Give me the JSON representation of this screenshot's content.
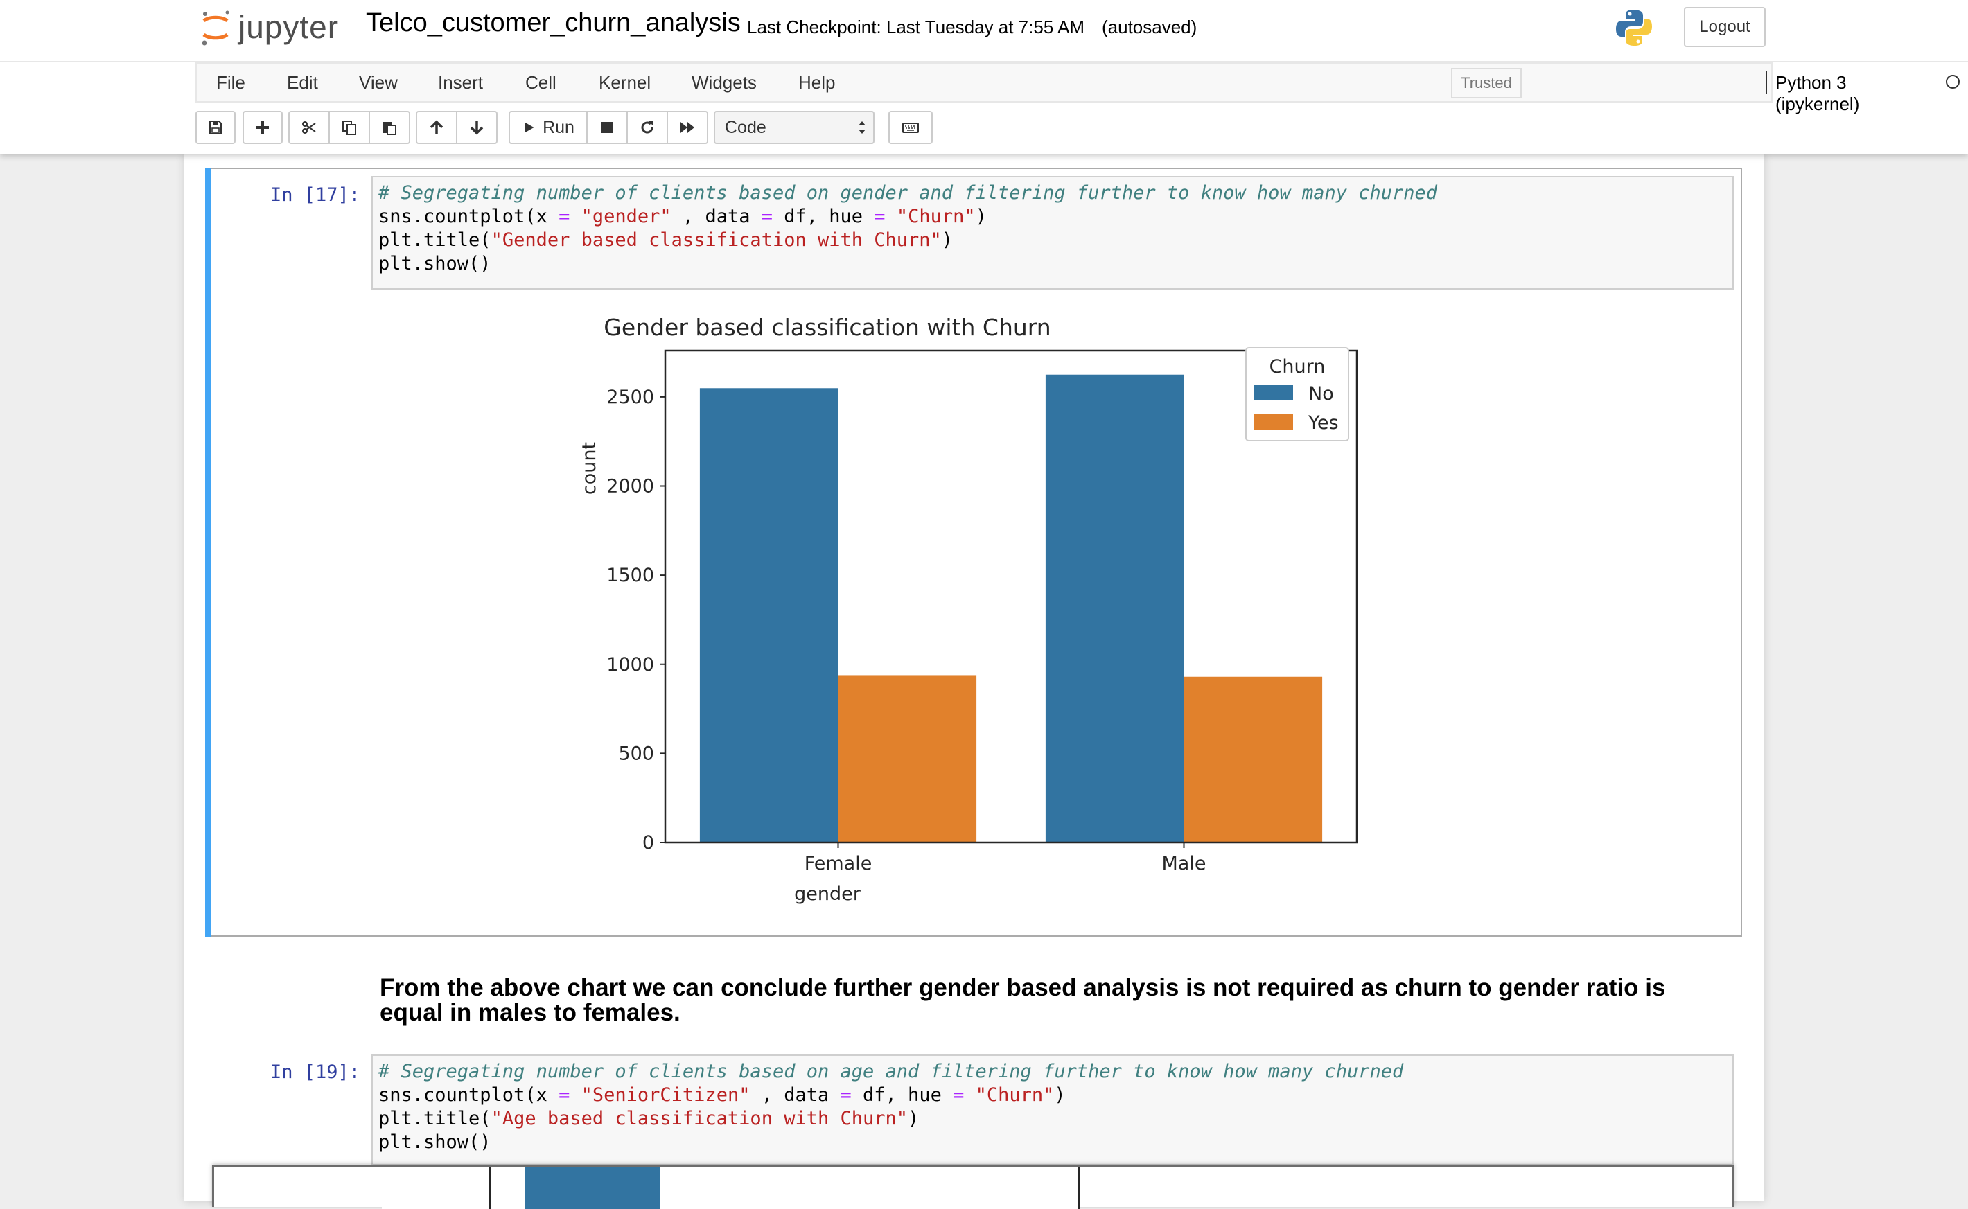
{
  "header": {
    "logo_text": "jupyter",
    "notebook_name": "Telco_customer_churn_analysis",
    "checkpoint": "Last Checkpoint: Last Tuesday at 7:55 AM",
    "autosave": "(autosaved)",
    "logout": "Logout"
  },
  "menu": {
    "items": [
      "File",
      "Edit",
      "View",
      "Insert",
      "Cell",
      "Kernel",
      "Widgets",
      "Help"
    ],
    "trusted": "Trusted",
    "kernel": "Python 3 (ipykernel)"
  },
  "toolbar": {
    "run_label": "Run",
    "cell_type": "Code",
    "icons": [
      "save-icon",
      "plus-icon",
      "cut-icon",
      "copy-icon",
      "paste-icon",
      "arrow-up-icon",
      "arrow-down-icon",
      "play-icon",
      "stop-icon",
      "restart-icon",
      "fast-forward-icon",
      "keyboard-icon"
    ]
  },
  "cells": [
    {
      "prompt": "In [17]:",
      "code": {
        "comment": "# Segregating number of clients based on gender and filtering further to know how many churned",
        "l2_a": "sns.countplot(x ",
        "l2_op1": "=",
        "l2_b": " ",
        "l2_str1": "\"gender\"",
        "l2_c": " , data ",
        "l2_op2": "=",
        "l2_d": " df, hue ",
        "l2_op3": "=",
        "l2_e": " ",
        "l2_str2": "\"Churn\"",
        "l2_f": ")",
        "l3_a": "plt.title(",
        "l3_str": "\"Gender based classification with Churn\"",
        "l3_b": ")",
        "l4": "plt.show()"
      }
    },
    {
      "prompt": "In [19]:",
      "code": {
        "comment": "# Segregating number of clients based on age and filtering further to know how many churned",
        "l2_a": "sns.countplot(x ",
        "l2_op1": "=",
        "l2_b": " ",
        "l2_str1": "\"SeniorCitizen\"",
        "l2_c": " , data ",
        "l2_op2": "=",
        "l2_d": " df, hue ",
        "l2_op3": "=",
        "l2_e": " ",
        "l2_str2": "\"Churn\"",
        "l2_f": ")",
        "l3_a": "plt.title(",
        "l3_str": "\"Age based classification with Churn\"",
        "l3_b": ")",
        "l4": "plt.show()"
      }
    }
  ],
  "markdown": "From the above chart we can conclude further gender based analysis is not required as churn to gender ratio is equal in males to females.",
  "colors": {
    "no": "#3274a1",
    "yes": "#e1812c",
    "accent": "#42a5f5"
  },
  "chart_data": {
    "type": "bar",
    "title": "Gender based classification with Churn",
    "xlabel": "gender",
    "ylabel": "count",
    "categories": [
      "Female",
      "Male"
    ],
    "series": [
      {
        "name": "No",
        "values": [
          2549,
          2625
        ]
      },
      {
        "name": "Yes",
        "values": [
          939,
          930
        ]
      }
    ],
    "ylim": [
      0,
      2760
    ],
    "yticks": [
      0,
      500,
      1000,
      1500,
      2000,
      2500
    ],
    "legend_title": "Churn",
    "legend_position": "top-right",
    "grid": false
  },
  "chart_data_partial": {
    "note_visible": "second chart (cut off at bottom); only top of first 'No' bar visible"
  }
}
